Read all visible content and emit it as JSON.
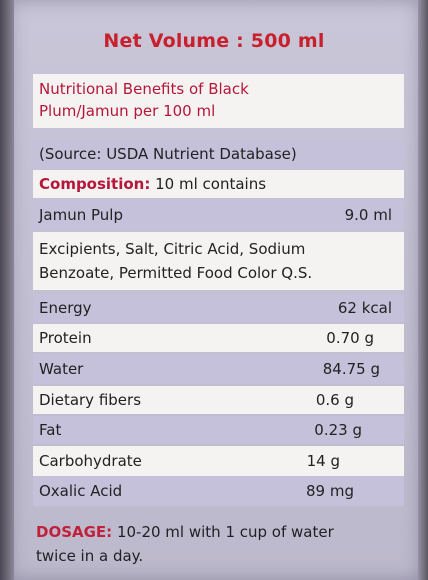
{
  "net_volume": "Net Volume : 500 ml",
  "header": {
    "title_line1": "Nutritional Benefits of Black",
    "title_line2": "Plum/Jamun per 100 ml",
    "source": "(Source: USDA Nutrient Database)"
  },
  "composition": {
    "label": "Composition:",
    "text": "10 ml contains"
  },
  "jamun_pulp": {
    "name": "Jamun Pulp",
    "value": "9.0 ml"
  },
  "excipients": {
    "line1": "Excipients, Salt, Citric Acid, Sodium",
    "line2": "Benzoate, Permitted Food Color Q.S."
  },
  "nutrients": [
    {
      "name": "Energy",
      "value": "62 kcal"
    },
    {
      "name": "Protein",
      "value": "0.70 g"
    },
    {
      "name": "Water",
      "value": "84.75 g"
    },
    {
      "name": "Dietary fibers",
      "value": "0.6 g"
    },
    {
      "name": "Fat",
      "value": "0.23 g"
    },
    {
      "name": "Carbohydrate",
      "value": "14 g"
    },
    {
      "name": "Oxalic Acid",
      "value": "89 mg"
    }
  ],
  "dosage": {
    "label": "DOSAGE:",
    "text_line1": "10-20 ml with 1 cup of water",
    "text_line2": "twice in a day."
  }
}
